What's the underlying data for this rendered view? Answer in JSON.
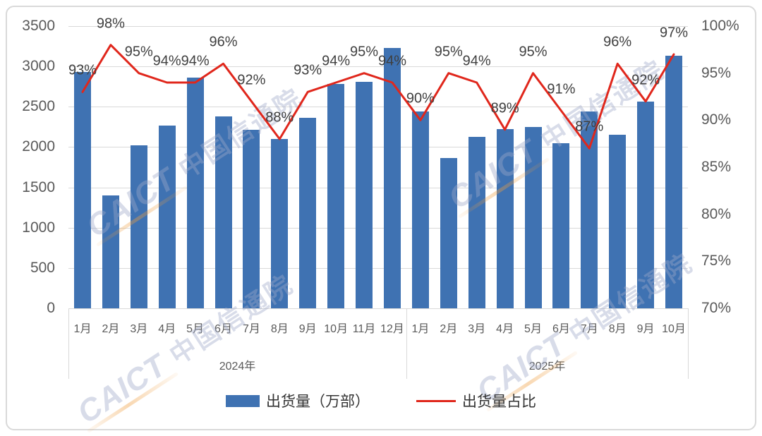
{
  "watermark": {
    "latin": "CAICT",
    "cjk": "中国信通院"
  },
  "legend": [
    {
      "label": "出货量（万部）",
      "type": "bar",
      "color": "#3f72b2"
    },
    {
      "label": "出货量占比",
      "type": "line",
      "color": "#e0271c"
    }
  ],
  "chart_data": {
    "type": "bar+line combo",
    "title": "",
    "grid": true,
    "legend_position": "bottom",
    "groups": [
      {
        "year": "2024年",
        "months": [
          "1月",
          "2月",
          "3月",
          "4月",
          "5月",
          "6月",
          "7月",
          "8月",
          "9月",
          "10月",
          "11月",
          "12月"
        ]
      },
      {
        "year": "2025年",
        "months": [
          "1月",
          "2月",
          "3月",
          "4月",
          "5月",
          "6月",
          "7月",
          "8月",
          "9月",
          "10月"
        ]
      }
    ],
    "series": [
      {
        "name": "出货量（万部）",
        "type": "bar",
        "axis": "left",
        "color": "#3f72b2",
        "values": [
          2930,
          1400,
          2020,
          2270,
          2860,
          2380,
          2210,
          2100,
          2360,
          2780,
          2810,
          3230,
          2440,
          1860,
          2130,
          2220,
          2250,
          2050,
          2440,
          2150,
          2560,
          3130
        ]
      },
      {
        "name": "出货量占比",
        "type": "line",
        "axis": "right",
        "color": "#e0271c",
        "values": [
          93,
          98,
          95,
          94,
          94,
          96,
          92,
          88,
          93,
          94,
          95,
          94,
          90,
          95,
          94,
          89,
          95,
          91,
          87,
          96,
          92,
          97
        ],
        "labels": [
          "93%",
          "98%",
          "95%",
          "94%",
          "94%",
          "96%",
          "92%",
          "88%",
          "93%",
          "94%",
          "95%",
          "94%",
          "90%",
          "95%",
          "94%",
          "89%",
          "95%",
          "91%",
          "87%",
          "96%",
          "92%",
          "97%"
        ]
      }
    ],
    "left_axis": {
      "min": 0,
      "max": 3500,
      "step": 500,
      "ticks": [
        "3500",
        "3000",
        "2500",
        "2000",
        "1500",
        "1000",
        "500",
        "0"
      ]
    },
    "right_axis": {
      "min": 70,
      "max": 100,
      "step": 5,
      "ticks": [
        "100%",
        "95%",
        "90%",
        "85%",
        "80%",
        "75%",
        "70%"
      ]
    }
  }
}
